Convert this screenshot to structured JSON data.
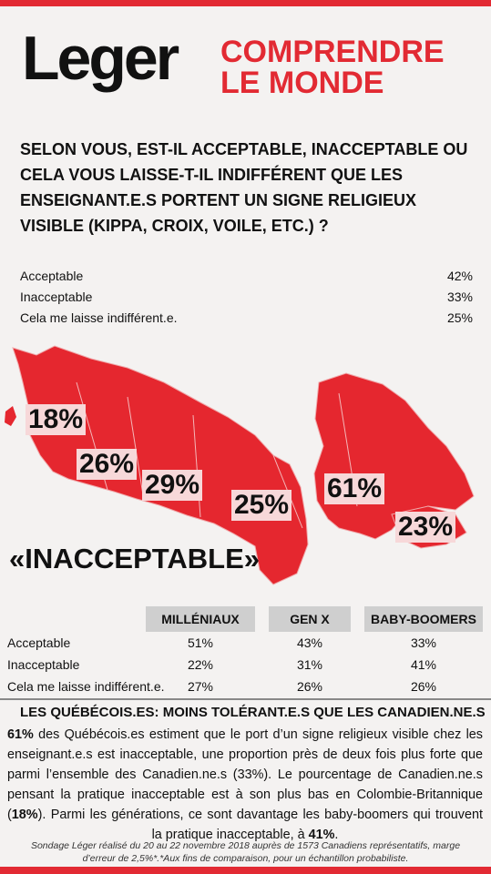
{
  "brand": {
    "logo_text": "Leger",
    "tagline_line1": "COMPRENDRE",
    "tagline_line2": "LE MONDE"
  },
  "question": "SELON VOUS, EST-IL ACCEPTABLE, INACCEPTABLE OU CELA VOUS LAISSE-T-IL INDIFFÉRENT QUE LES ENSEIGNANT.E.S PORTENT UN SIGNE  RELIGIEUX VISIBLE (KIPPA, CROIX, VOILE, ETC.) ?",
  "colors": {
    "accent": "#e22a33",
    "map_fill": "#e5272f",
    "label_bg": "#f7d8d9"
  },
  "chart_data": [
    {
      "type": "table",
      "rows": [
        {
          "label": "Acceptable",
          "value": "42%"
        },
        {
          "label": "Inacceptable",
          "value": "33%"
        },
        {
          "label": "Cela me laisse indifférent.e.",
          "value": "25%"
        }
      ]
    },
    {
      "type": "map",
      "title": "«INACCEPTABLE»",
      "regions": [
        {
          "value": "18%"
        },
        {
          "value": "26%"
        },
        {
          "value": "29%"
        },
        {
          "value": "25%"
        },
        {
          "value": "61%"
        },
        {
          "value": "23%"
        }
      ]
    },
    {
      "type": "table",
      "columns": [
        "MILLÉNIAUX",
        "GEN X",
        "BABY-BOOMERS"
      ],
      "rows": [
        {
          "label": "Acceptable",
          "values": [
            "51%",
            "43%",
            "33%"
          ]
        },
        {
          "label": "Inacceptable",
          "values": [
            "22%",
            "31%",
            "41%"
          ]
        },
        {
          "label": "Cela me laisse indifférent.e.",
          "values": [
            "27%",
            "26%",
            "26%"
          ]
        }
      ]
    }
  ],
  "summary": {
    "headline": "LES QUÉBÉCOIS.ES: MOINS TOLÉRANT.E.S QUE LES CANADIEN.NE.S",
    "p1": "61%",
    "p2": " des Québécois.es estiment que le port d’un signe religieux visible chez les enseignant.e.s est inacceptable, une proportion près de deux fois plus forte que parmi l’ensemble des Canadien.ne.s (33%). Le pourcentage de Canadien.ne.s pensant la pratique inacceptable est à son plus bas en Colombie-Britannique (",
    "p3": "18%",
    "p4": "). Parmi les générations, ce sont davantage les baby-boomers qui trouvent la pratique inacceptable, à ",
    "p5": "41%",
    "p6": "."
  },
  "footnote": "Sondage Léger réalisé du 20 au 22 novembre 2018 auprès de 1573 Canadiens représentatifs, marge d’erreur de 2,5%*.*Aux fins de comparaison, pour un échantillon probabiliste."
}
